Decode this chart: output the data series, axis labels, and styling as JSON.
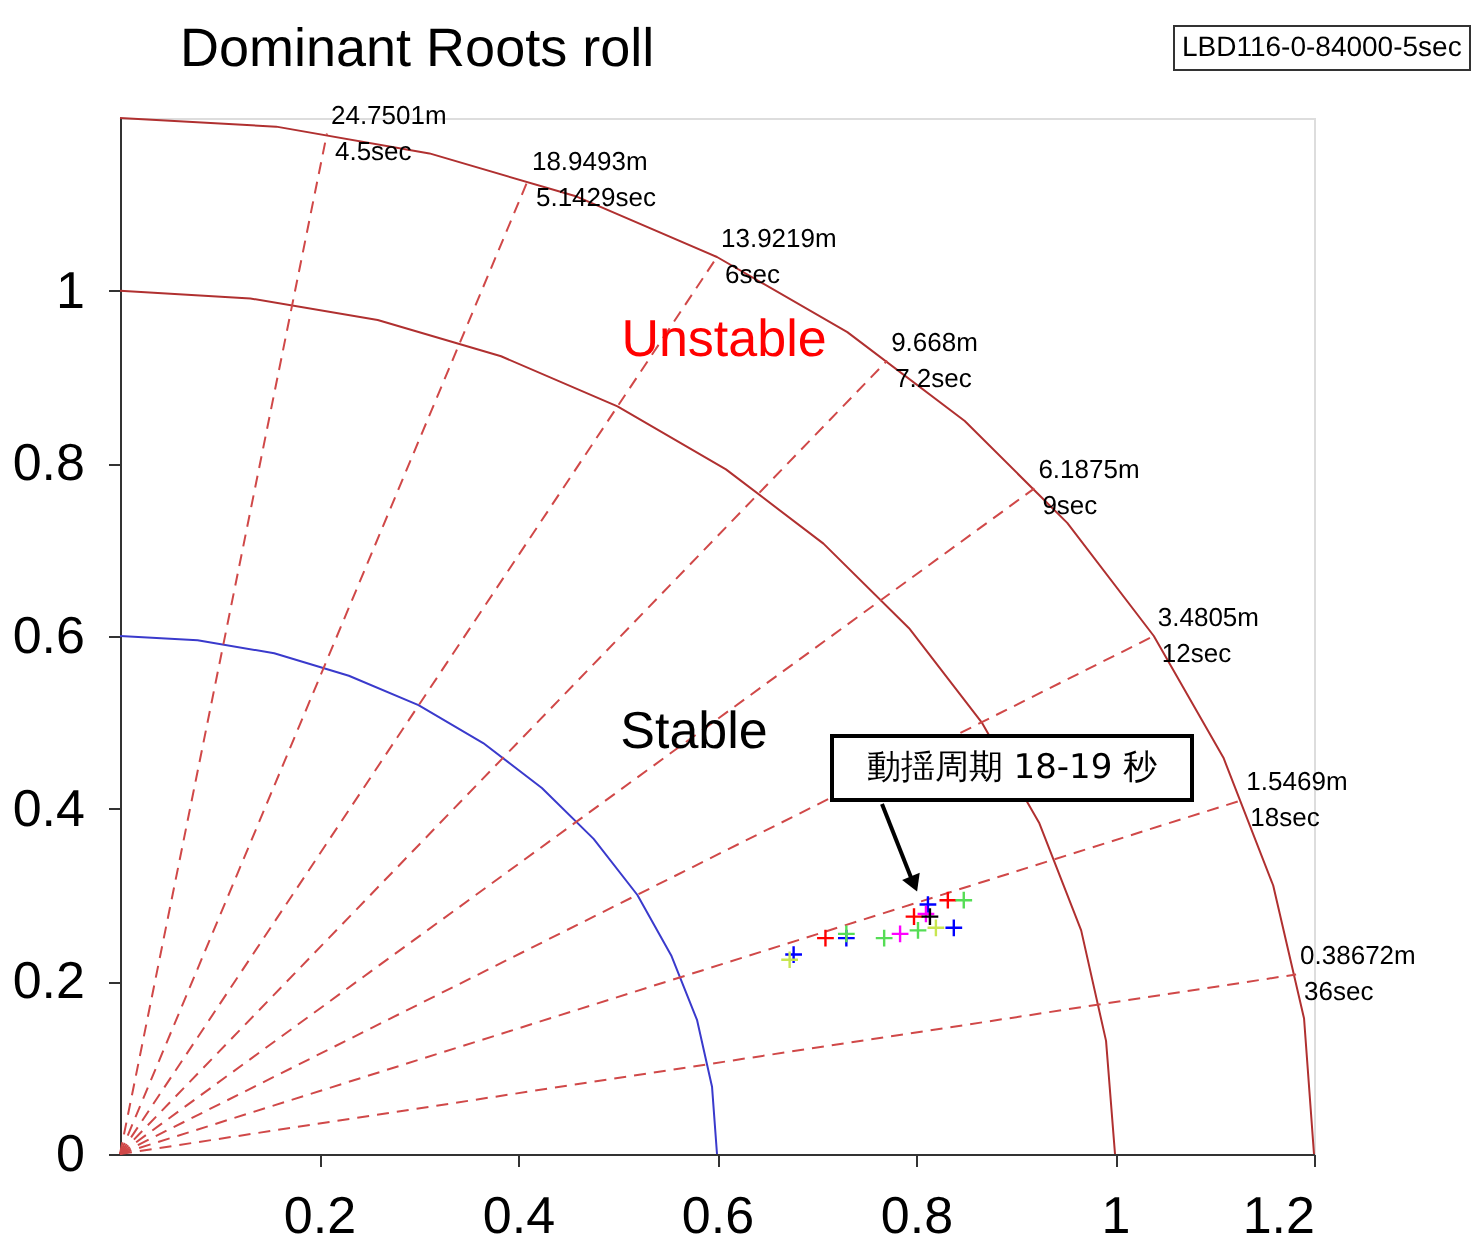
{
  "chart_data": {
    "type": "scatter",
    "title": "Dominant Roots roll",
    "xlim": [
      0,
      1.2
    ],
    "ylim": [
      0,
      1.2
    ],
    "xticks": [
      0.2,
      0.4,
      0.6,
      0.8,
      1,
      1.2
    ],
    "yticks": [
      0,
      0.2,
      0.4,
      0.6,
      0.8,
      1
    ],
    "annotations": [
      "LBD116-0-84000-5sec",
      "Unstable",
      "Stable",
      "動揺周期 18-19 秒",
      {
        "text": "24.7501m",
        "x": 0.208,
        "y": 1.182
      },
      {
        "text": "18.9493m",
        "x": 0.41,
        "y": 1.128
      },
      {
        "text": "13.9219m",
        "x": 0.6,
        "y": 1.039
      },
      {
        "text": "9.668m",
        "x": 0.771,
        "y": 0.919
      },
      {
        "text": "6.1875m",
        "x": 0.919,
        "y": 0.771
      },
      {
        "text": "3.4805m",
        "x": 1.039,
        "y": 0.6
      },
      {
        "text": "1.5469m",
        "x": 1.128,
        "y": 0.41
      },
      {
        "text": "0.38672m",
        "x": 1.182,
        "y": 0.208
      }
    ],
    "series": [
      {
        "type": "line",
        "color": "#3a3acc",
        "line_style": "solid",
        "x": [
          0.6,
          0.595,
          0.58,
          0.554,
          0.52,
          0.476,
          0.424,
          0.365,
          0.3,
          0.23,
          0.155,
          0.078,
          0
        ],
        "values": [
          0,
          0.078,
          0.155,
          0.23,
          0.3,
          0.365,
          0.424,
          0.476,
          0.52,
          0.554,
          0.58,
          0.595,
          0.6
        ]
      },
      {
        "type": "line",
        "color": "#b03030",
        "line_style": "solid",
        "x": [
          1,
          0.991,
          0.966,
          0.924,
          0.866,
          0.793,
          0.707,
          0.609,
          0.5,
          0.383,
          0.259,
          0.131,
          0
        ],
        "values": [
          0,
          0.131,
          0.259,
          0.383,
          0.5,
          0.609,
          0.707,
          0.793,
          0.866,
          0.924,
          0.966,
          0.991,
          1
        ]
      },
      {
        "type": "line",
        "color": "#b03030",
        "line_style": "solid",
        "x": [
          1.2,
          1.19,
          1.159,
          1.109,
          1.039,
          0.952,
          0.849,
          0.731,
          0.6,
          0.459,
          0.311,
          0.157,
          0
        ],
        "values": [
          0,
          0.157,
          0.311,
          0.459,
          0.6,
          0.731,
          0.849,
          0.952,
          1.039,
          1.109,
          1.159,
          1.19,
          1.2
        ]
      },
      {
        "type": "line",
        "name": "4.5sec",
        "color": "#d04848",
        "line_style": "dashed",
        "x": [
          0,
          0.208
        ],
        "values": [
          0,
          1.182
        ]
      },
      {
        "type": "line",
        "name": "5.1429sec",
        "color": "#d04848",
        "line_style": "dashed",
        "x": [
          0,
          0.41
        ],
        "values": [
          0,
          1.128
        ]
      },
      {
        "type": "line",
        "name": "6sec",
        "color": "#d04848",
        "line_style": "dashed",
        "x": [
          0,
          0.6
        ],
        "values": [
          0,
          1.039
        ]
      },
      {
        "type": "line",
        "name": "7.2sec",
        "color": "#d04848",
        "line_style": "dashed",
        "x": [
          0,
          0.771
        ],
        "values": [
          0,
          0.919
        ]
      },
      {
        "type": "line",
        "name": "9sec",
        "color": "#d04848",
        "line_style": "dashed",
        "x": [
          0,
          0.919
        ],
        "values": [
          0,
          0.771
        ]
      },
      {
        "type": "line",
        "name": "12sec",
        "color": "#d04848",
        "line_style": "dashed",
        "x": [
          0,
          1.039
        ],
        "values": [
          0,
          0.6
        ]
      },
      {
        "type": "line",
        "name": "18sec",
        "color": "#d04848",
        "line_style": "dashed",
        "x": [
          0,
          1.128
        ],
        "values": [
          0,
          0.41
        ]
      },
      {
        "type": "line",
        "name": "36sec",
        "color": "#d04848",
        "line_style": "dashed",
        "x": [
          0,
          1.182
        ],
        "values": [
          0,
          0.208
        ]
      },
      {
        "color": "#0000ff",
        "marker": "cross",
        "x": [
          0.677,
          0.73,
          0.812,
          0.838
        ],
        "values": [
          0.231,
          0.25,
          0.289,
          0.262
        ]
      },
      {
        "color": "#c8e650",
        "marker": "cross",
        "x": [
          0.673,
          0.82
        ],
        "values": [
          0.225,
          0.262
        ]
      },
      {
        "color": "#ff0000",
        "marker": "cross",
        "x": [
          0.709,
          0.798,
          0.832
        ],
        "values": [
          0.25,
          0.275,
          0.294
        ]
      },
      {
        "color": "#55dd55",
        "marker": "cross",
        "x": [
          0.73,
          0.768,
          0.802,
          0.848
        ],
        "values": [
          0.255,
          0.25,
          0.259,
          0.294
        ]
      },
      {
        "color": "#ff00ff",
        "marker": "cross",
        "x": [
          0.784,
          0.81
        ],
        "values": [
          0.255,
          0.278
        ]
      },
      {
        "color": "#000000",
        "marker": "cross",
        "x": [
          0.814
        ],
        "values": [
          0.275
        ]
      }
    ]
  }
}
